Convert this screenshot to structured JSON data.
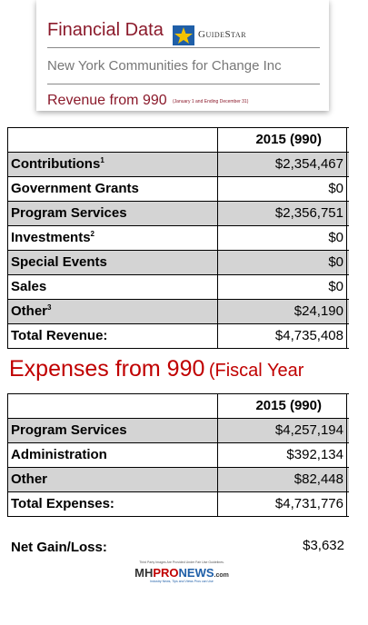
{
  "header": {
    "title": "Financial Data",
    "logo": "GuideStar",
    "organization": "New York Communities for Change Inc",
    "subtitle": "Revenue from 990",
    "subtitle_note": "(January 1 and Ending December 31)"
  },
  "revenue_table": {
    "column": "2015 (990)",
    "rows": [
      {
        "label": "Contributions",
        "sup": "1",
        "value": "$2,354,467"
      },
      {
        "label": "Government Grants",
        "value": "$0"
      },
      {
        "label": "Program Services",
        "value": "$2,356,751"
      },
      {
        "label": "Investments",
        "sup": "2",
        "value": "$0"
      },
      {
        "label": "Special Events",
        "value": "$0"
      },
      {
        "label": "Sales",
        "value": "$0"
      },
      {
        "label": "Other",
        "sup": "3",
        "value": "$24,190"
      },
      {
        "label": "Total Revenue:",
        "value": "$4,735,408"
      }
    ]
  },
  "expenses_heading": {
    "main": "Expenses from 990",
    "extra": "(Fiscal Year"
  },
  "expenses_table": {
    "column": "2015 (990)",
    "rows": [
      {
        "label": "Program Services",
        "value": "$4,257,194"
      },
      {
        "label": "Administration",
        "value": "$392,134"
      },
      {
        "label": "Other",
        "value": "$82,448"
      },
      {
        "label": "Total Expenses:",
        "value": "$4,731,776"
      }
    ]
  },
  "net": {
    "label": "Net Gain/Loss:",
    "value": "$3,632"
  },
  "footer": {
    "note": "Third Party Images Are Provided Under Fair Use Guidelines.",
    "brand_a": "MH",
    "brand_b": "PRO",
    "brand_c": "NEWS",
    "brand_d": ".com",
    "tagline": "Industry News, Tips and Views Pros can Use"
  }
}
